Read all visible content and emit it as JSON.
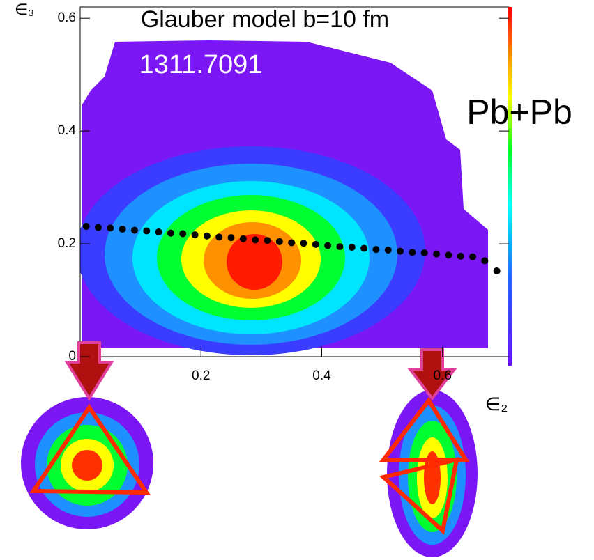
{
  "chart_data": {
    "type": "scatter",
    "title": "Glauber model   b=10 fm",
    "annotations": [
      "1311.7091",
      "Pb+Pb"
    ],
    "x_label": "∈₂",
    "y_label": "∈₃",
    "x": [
      0.01,
      0.03,
      0.05,
      0.07,
      0.09,
      0.11,
      0.13,
      0.15,
      0.17,
      0.19,
      0.21,
      0.23,
      0.25,
      0.27,
      0.29,
      0.31,
      0.33,
      0.35,
      0.37,
      0.39,
      0.41,
      0.43,
      0.45,
      0.47,
      0.49,
      0.51,
      0.53,
      0.55,
      0.57,
      0.59,
      0.61,
      0.63,
      0.65,
      0.67,
      0.69
    ],
    "values": [
      0.231,
      0.229,
      0.228,
      0.226,
      0.224,
      0.223,
      0.221,
      0.219,
      0.218,
      0.216,
      0.214,
      0.212,
      0.211,
      0.209,
      0.207,
      0.206,
      0.204,
      0.202,
      0.201,
      0.199,
      0.197,
      0.195,
      0.194,
      0.192,
      0.19,
      0.189,
      0.187,
      0.185,
      0.184,
      0.182,
      0.18,
      0.178,
      0.177,
      0.17,
      0.152
    ],
    "color": "#000000",
    "xlim": [
      0,
      0.71
    ],
    "ylim": [
      0,
      0.62
    ],
    "xticks": [
      0.2,
      0.4,
      0.6
    ],
    "yticks": [
      0,
      0.2,
      0.4,
      0.6
    ]
  }
}
